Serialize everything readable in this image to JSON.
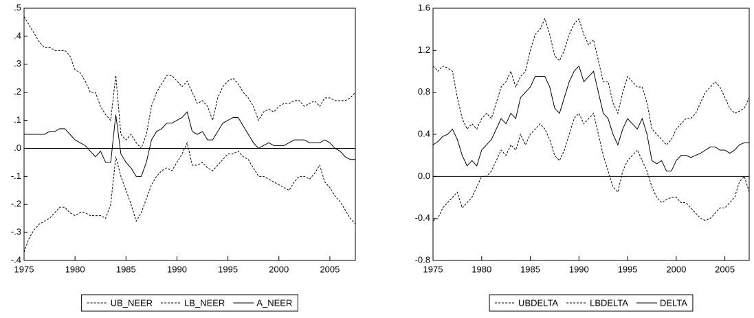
{
  "chart_data": [
    {
      "type": "line",
      "x": [
        1975,
        1975.5,
        1976,
        1976.5,
        1977,
        1977.5,
        1978,
        1978.5,
        1979,
        1979.5,
        1980,
        1980.5,
        1981,
        1981.5,
        1982,
        1982.5,
        1983,
        1983.5,
        1984,
        1984.5,
        1985,
        1985.5,
        1986,
        1986.5,
        1987,
        1987.5,
        1988,
        1988.5,
        1989,
        1989.5,
        1990,
        1990.5,
        1991,
        1991.5,
        1992,
        1992.5,
        1993,
        1993.5,
        1994,
        1994.5,
        1995,
        1995.5,
        1996,
        1996.5,
        1997,
        1997.5,
        1998,
        1998.5,
        1999,
        1999.5,
        2000,
        2000.5,
        2001,
        2001.5,
        2002,
        2002.5,
        2003,
        2003.5,
        2004,
        2004.5,
        2005,
        2005.5,
        2006,
        2006.5,
        2007,
        2007.5
      ],
      "xlim": [
        1975,
        2007.5
      ],
      "xticks": [
        1975,
        1980,
        1985,
        1990,
        1995,
        2000,
        2005
      ],
      "ylim": [
        -0.4,
        0.5
      ],
      "yticks": [
        {
          "value": -0.4,
          "label": "-.4"
        },
        {
          "value": -0.3,
          "label": "-.3"
        },
        {
          "value": -0.2,
          "label": "-.2"
        },
        {
          "value": -0.1,
          "label": "-.1"
        },
        {
          "value": 0,
          "label": ".0"
        },
        {
          "value": 0.1,
          "label": ".1"
        },
        {
          "value": 0.2,
          "label": ".2"
        },
        {
          "value": 0.3,
          "label": ".3"
        },
        {
          "value": 0.4,
          "label": ".4"
        },
        {
          "value": 0.5,
          "label": ".5"
        }
      ],
      "zero_line": true,
      "series": [
        {
          "name": "UB_NEER",
          "color": "#000000",
          "style": "dashed",
          "values": [
            0.47,
            0.44,
            0.41,
            0.38,
            0.36,
            0.36,
            0.35,
            0.35,
            0.35,
            0.33,
            0.28,
            0.27,
            0.24,
            0.2,
            0.2,
            0.15,
            0.12,
            0.1,
            0.26,
            0.05,
            0.03,
            0.05,
            0.02,
            0.0,
            0.05,
            0.15,
            0.2,
            0.23,
            0.26,
            0.26,
            0.24,
            0.22,
            0.24,
            0.2,
            0.16,
            0.17,
            0.15,
            0.1,
            0.18,
            0.22,
            0.24,
            0.25,
            0.23,
            0.2,
            0.18,
            0.15,
            0.1,
            0.13,
            0.14,
            0.13,
            0.15,
            0.16,
            0.16,
            0.17,
            0.17,
            0.15,
            0.16,
            0.17,
            0.15,
            0.18,
            0.18,
            0.17,
            0.17,
            0.17,
            0.18,
            0.2
          ]
        },
        {
          "name": "LB_NEER",
          "color": "#000000",
          "style": "dashed",
          "values": [
            -0.37,
            -0.32,
            -0.29,
            -0.27,
            -0.26,
            -0.25,
            -0.23,
            -0.21,
            -0.21,
            -0.23,
            -0.24,
            -0.23,
            -0.23,
            -0.24,
            -0.24,
            -0.24,
            -0.25,
            -0.2,
            -0.03,
            -0.1,
            -0.15,
            -0.2,
            -0.26,
            -0.23,
            -0.18,
            -0.13,
            -0.1,
            -0.08,
            -0.07,
            -0.08,
            -0.05,
            -0.02,
            0.02,
            -0.06,
            -0.06,
            -0.05,
            -0.07,
            -0.08,
            -0.06,
            -0.04,
            -0.02,
            -0.02,
            -0.01,
            -0.03,
            -0.04,
            -0.07,
            -0.1,
            -0.1,
            -0.11,
            -0.12,
            -0.13,
            -0.14,
            -0.15,
            -0.12,
            -0.1,
            -0.1,
            -0.11,
            -0.09,
            -0.06,
            -0.12,
            -0.14,
            -0.17,
            -0.19,
            -0.22,
            -0.25,
            -0.27
          ]
        },
        {
          "name": "A_NEER",
          "color": "#000000",
          "style": "solid",
          "values": [
            0.05,
            0.05,
            0.05,
            0.05,
            0.05,
            0.06,
            0.06,
            0.07,
            0.07,
            0.05,
            0.03,
            0.02,
            0.01,
            -0.01,
            -0.03,
            -0.01,
            -0.05,
            -0.05,
            0.12,
            -0.02,
            -0.05,
            -0.07,
            -0.1,
            -0.1,
            -0.05,
            0.03,
            0.06,
            0.07,
            0.09,
            0.09,
            0.1,
            0.11,
            0.13,
            0.06,
            0.05,
            0.06,
            0.03,
            0.03,
            0.06,
            0.09,
            0.1,
            0.11,
            0.11,
            0.08,
            0.05,
            0.02,
            0.0,
            0.01,
            0.02,
            0.01,
            0.01,
            0.01,
            0.02,
            0.03,
            0.03,
            0.03,
            0.02,
            0.02,
            0.02,
            0.03,
            0.02,
            0.0,
            -0.01,
            -0.03,
            -0.04,
            -0.04
          ]
        }
      ]
    },
    {
      "type": "line",
      "x": [
        1975,
        1975.5,
        1976,
        1976.5,
        1977,
        1977.5,
        1978,
        1978.5,
        1979,
        1979.5,
        1980,
        1980.5,
        1981,
        1981.5,
        1982,
        1982.5,
        1983,
        1983.5,
        1984,
        1984.5,
        1985,
        1985.5,
        1986,
        1986.5,
        1987,
        1987.5,
        1988,
        1988.5,
        1989,
        1989.5,
        1990,
        1990.5,
        1991,
        1991.5,
        1992,
        1992.5,
        1993,
        1993.5,
        1994,
        1994.5,
        1995,
        1995.5,
        1996,
        1996.5,
        1997,
        1997.5,
        1998,
        1998.5,
        1999,
        1999.5,
        2000,
        2000.5,
        2001,
        2001.5,
        2002,
        2002.5,
        2003,
        2003.5,
        2004,
        2004.5,
        2005,
        2005.5,
        2006,
        2006.5,
        2007,
        2007.5
      ],
      "xlim": [
        1975,
        2007.5
      ],
      "xticks": [
        1975,
        1980,
        1985,
        1990,
        1995,
        2000,
        2005
      ],
      "ylim": [
        -0.8,
        1.6
      ],
      "yticks": [
        -0.8,
        -0.4,
        {
          "value": 0,
          "label": "0.0"
        },
        0.4,
        0.8,
        1.2,
        1.6
      ],
      "zero_line": true,
      "series": [
        {
          "name": "UBDELTA",
          "color": "#000000",
          "style": "dashed",
          "values": [
            1.05,
            1.0,
            1.05,
            1.03,
            1.0,
            0.75,
            0.55,
            0.45,
            0.5,
            0.45,
            0.55,
            0.6,
            0.55,
            0.7,
            0.85,
            0.9,
            1.0,
            0.85,
            0.95,
            1.0,
            1.2,
            1.35,
            1.4,
            1.5,
            1.35,
            1.15,
            1.1,
            1.2,
            1.35,
            1.45,
            1.5,
            1.35,
            1.25,
            1.3,
            1.1,
            0.9,
            0.9,
            0.7,
            0.6,
            0.8,
            0.95,
            0.9,
            0.85,
            0.85,
            0.7,
            0.45,
            0.4,
            0.35,
            0.3,
            0.35,
            0.45,
            0.5,
            0.55,
            0.55,
            0.6,
            0.7,
            0.8,
            0.85,
            0.9,
            0.85,
            0.75,
            0.65,
            0.6,
            0.62,
            0.65,
            0.75
          ]
        },
        {
          "name": "LBDELTA",
          "color": "#000000",
          "style": "dashed",
          "values": [
            -0.42,
            -0.4,
            -0.3,
            -0.25,
            -0.2,
            -0.15,
            -0.3,
            -0.25,
            -0.2,
            -0.1,
            0.0,
            0.0,
            0.05,
            0.15,
            0.25,
            0.2,
            0.3,
            0.25,
            0.4,
            0.3,
            0.4,
            0.45,
            0.5,
            0.45,
            0.35,
            0.2,
            0.15,
            0.25,
            0.4,
            0.55,
            0.6,
            0.5,
            0.55,
            0.6,
            0.4,
            0.2,
            0.05,
            -0.1,
            -0.15,
            0.05,
            0.15,
            0.2,
            0.25,
            0.15,
            0.05,
            -0.1,
            -0.2,
            -0.25,
            -0.22,
            -0.2,
            -0.2,
            -0.25,
            -0.25,
            -0.3,
            -0.35,
            -0.4,
            -0.42,
            -0.4,
            -0.35,
            -0.3,
            -0.3,
            -0.25,
            -0.2,
            -0.05,
            0.0,
            -0.15
          ]
        },
        {
          "name": "DELTA",
          "color": "#000000",
          "style": "solid",
          "values": [
            0.3,
            0.33,
            0.38,
            0.4,
            0.45,
            0.35,
            0.2,
            0.1,
            0.15,
            0.1,
            0.25,
            0.3,
            0.35,
            0.45,
            0.55,
            0.5,
            0.6,
            0.55,
            0.75,
            0.8,
            0.85,
            0.95,
            0.95,
            0.95,
            0.85,
            0.65,
            0.6,
            0.75,
            0.9,
            1.0,
            1.05,
            0.9,
            0.95,
            1.0,
            0.8,
            0.6,
            0.55,
            0.4,
            0.3,
            0.45,
            0.55,
            0.5,
            0.45,
            0.55,
            0.4,
            0.15,
            0.12,
            0.15,
            0.05,
            0.05,
            0.15,
            0.2,
            0.2,
            0.18,
            0.2,
            0.22,
            0.25,
            0.28,
            0.28,
            0.25,
            0.25,
            0.22,
            0.25,
            0.3,
            0.32,
            0.32
          ]
        }
      ]
    }
  ]
}
